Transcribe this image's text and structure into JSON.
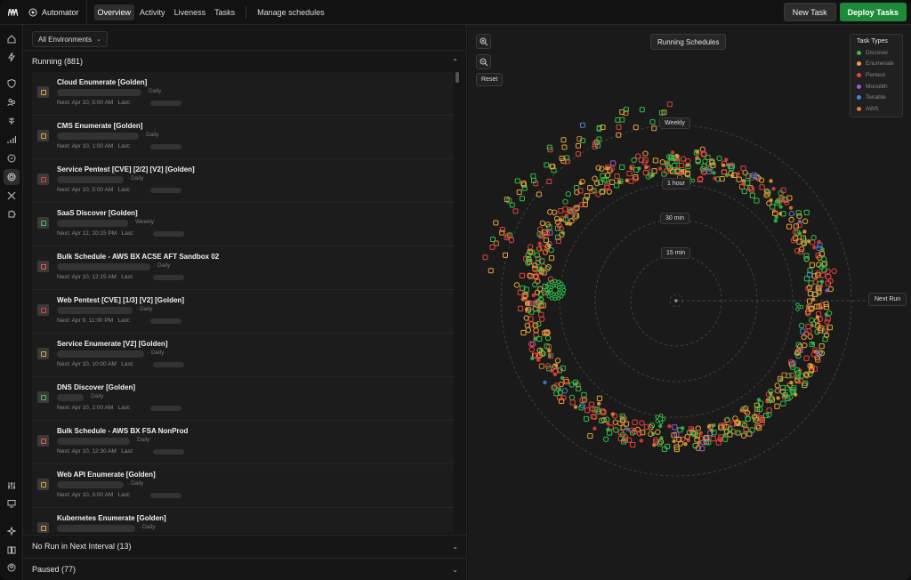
{
  "app": {
    "title": "Automator"
  },
  "nav": [
    "Overview",
    "Activity",
    "Liveness",
    "Tasks"
  ],
  "nav_extra": "Manage schedules",
  "actions": {
    "new_task": "New Task",
    "deploy": "Deploy Tasks"
  },
  "rail_icons": [
    "home-icon",
    "bolt-icon",
    "shield-icon",
    "people-icon",
    "tree-icon",
    "signal-icon",
    "compass-icon",
    "target-icon",
    "tools-icon",
    "puzzle-icon",
    "sliders-icon",
    "monitor-icon",
    "sparkle-icon",
    "book-icon",
    "user-circle-icon"
  ],
  "filter": {
    "environment": "All Environments"
  },
  "sections": {
    "running": "Running (881)",
    "no_run": "No Run in Next Interval (13)",
    "paused": "Paused (77)"
  },
  "schedules": [
    {
      "title": "Cloud Enumerate [Golden]",
      "frequency": "Daily",
      "next": "Next: Apr 10, 5:00 AM",
      "last": "Last:",
      "icon": "cloud-icon",
      "color": "#e8a33a"
    },
    {
      "title": "CMS Enumerate [Golden]",
      "frequency": "Daily",
      "next": "Next: Apr 10, 1:00 AM",
      "last": "Last:",
      "icon": "cms-icon",
      "color": "#e8a33a"
    },
    {
      "title": "Service Pentest [CVE] [2/2] [V2] [Golden]",
      "frequency": "Daily",
      "next": "Next: Apr 10, 5:00 AM",
      "last": "Last:",
      "icon": "bug-icon",
      "color": "#e04040"
    },
    {
      "title": "SaaS Discover [Golden]",
      "frequency": "Weekly",
      "next": "Next: Apr 12, 10:15 PM",
      "last": "Last:",
      "icon": "grid-icon",
      "color": "#3fbf5c"
    },
    {
      "title": "Bulk Schedule - AWS BX ACSE AFT Sandbox 02",
      "frequency": "Daily",
      "next": "Next: Apr 10, 12:15 AM",
      "last": "Last:",
      "icon": "cloud-icon",
      "color": "#e06040"
    },
    {
      "title": "Web Pentest [CVE] [1/3] [V2] [Golden]",
      "frequency": "Daily",
      "next": "Next: Apr 9, 11:00 PM",
      "last": "Last:",
      "icon": "globe-icon",
      "color": "#e04040"
    },
    {
      "title": "Service Enumerate [V2] [Golden]",
      "frequency": "Daily",
      "next": "Next: Apr 10, 10:00 AM",
      "last": "Last:",
      "icon": "service-icon",
      "color": "#e8a33a"
    },
    {
      "title": "DNS Discover [Golden]",
      "frequency": "Daily",
      "next": "Next: Apr 10, 2:00 AM",
      "last": "Last:",
      "icon": "dns-icon",
      "color": "#3fbf5c"
    },
    {
      "title": "Bulk Schedule - AWS BX FSA NonProd",
      "frequency": "Daily",
      "next": "Next: Apr 10, 12:30 AM",
      "last": "Last:",
      "icon": "cloud-icon",
      "color": "#e06040"
    },
    {
      "title": "Web API Enumerate [Golden]",
      "frequency": "Daily",
      "next": "Next: Apr 10, 3:00 AM",
      "last": "Last:",
      "icon": "api-icon",
      "color": "#e8a33a"
    },
    {
      "title": "Kubernetes Enumerate [Golden]",
      "frequency": "Daily",
      "next": "",
      "last": "",
      "icon": "k8s-icon",
      "color": "#e8a33a"
    }
  ],
  "radar": {
    "title": "Running Schedules",
    "zoom_in": "zoom-in-icon",
    "zoom_out": "zoom-out-icon",
    "reset": "Reset",
    "rings": [
      "Weekly",
      "1 hour",
      "30 min",
      "15 min"
    ],
    "next_run": "Next Run"
  },
  "legend": {
    "title": "Task Types",
    "items": [
      {
        "label": "Discover",
        "color": "#2fbf4a"
      },
      {
        "label": "Enumerate",
        "color": "#e8a33a"
      },
      {
        "label": "Pentest",
        "color": "#e84040"
      },
      {
        "label": "Monolith",
        "color": "#9b59d0"
      },
      {
        "label": "Tenable",
        "color": "#4a7fd6"
      },
      {
        "label": "AWS",
        "color": "#e8762a"
      }
    ]
  }
}
